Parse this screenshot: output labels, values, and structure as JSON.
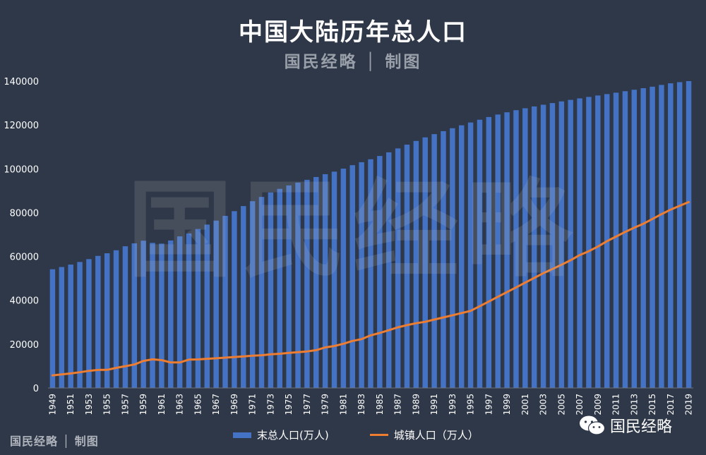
{
  "title": "中国大陆历年总人口",
  "subtitle": "国民经略 │ 制图",
  "watermark": "国民经略",
  "credit": "国民经略 │ 制图",
  "wechat_label": "国民经略",
  "colors": {
    "bar": "#4472c4",
    "line": "#ed7d31",
    "background": "#2f3848",
    "text": "#ffffff"
  },
  "chart_data": {
    "type": "bar",
    "title": "中国大陆历年总人口",
    "categories": [
      "1949",
      "1950",
      "1951",
      "1952",
      "1953",
      "1954",
      "1955",
      "1956",
      "1957",
      "1958",
      "1959",
      "1960",
      "1961",
      "1962",
      "1963",
      "1964",
      "1965",
      "1966",
      "1967",
      "1968",
      "1969",
      "1970",
      "1971",
      "1972",
      "1973",
      "1974",
      "1975",
      "1976",
      "1977",
      "1978",
      "1979",
      "1980",
      "1981",
      "1982",
      "1983",
      "1984",
      "1985",
      "1986",
      "1987",
      "1988",
      "1989",
      "1990",
      "1991",
      "1992",
      "1993",
      "1994",
      "1995",
      "1996",
      "1997",
      "1998",
      "1999",
      "2000",
      "2001",
      "2002",
      "2003",
      "2004",
      "2005",
      "2006",
      "2007",
      "2008",
      "2009",
      "2010",
      "2011",
      "2012",
      "2013",
      "2014",
      "2015",
      "2016",
      "2017",
      "2018",
      "2019"
    ],
    "tick_labels": [
      "1949",
      "1951",
      "1953",
      "1955",
      "1957",
      "1959",
      "1961",
      "1963",
      "1965",
      "1967",
      "1969",
      "1971",
      "1973",
      "1975",
      "1977",
      "1979",
      "1981",
      "1983",
      "1985",
      "1987",
      "1989",
      "1991",
      "1993",
      "1995",
      "1997",
      "1999",
      "2001",
      "2003",
      "2005",
      "2007",
      "2009",
      "2011",
      "2013",
      "2015",
      "2017",
      "2019"
    ],
    "series": [
      {
        "name": "末总人口(万人)",
        "type": "bar",
        "values": [
          54167,
          55196,
          56300,
          57482,
          58796,
          60266,
          61465,
          62828,
          64653,
          65994,
          67207,
          66207,
          65859,
          67295,
          69172,
          70499,
          72538,
          74542,
          76368,
          78534,
          80671,
          82992,
          85229,
          87177,
          89211,
          90859,
          92420,
          93717,
          94974,
          96259,
          97542,
          98705,
          100072,
          101654,
          103008,
          104357,
          105851,
          107507,
          109300,
          111026,
          112704,
          114333,
          115823,
          117171,
          118517,
          119850,
          121121,
          122389,
          123626,
          124761,
          125786,
          126743,
          127627,
          128453,
          129227,
          129988,
          130756,
          131448,
          132129,
          132802,
          133450,
          134091,
          134735,
          135404,
          136072,
          136782,
          137462,
          138271,
          139008,
          139538,
          140005
        ]
      },
      {
        "name": "城镇人口（万人）",
        "type": "line",
        "values": [
          5765,
          6169,
          6632,
          7163,
          7826,
          8249,
          8285,
          9185,
          9949,
          10721,
          12371,
          13073,
          12707,
          11659,
          11646,
          12950,
          13045,
          13313,
          13548,
          13838,
          14117,
          14424,
          14711,
          14935,
          15345,
          15595,
          16030,
          16341,
          16669,
          17245,
          18495,
          19140,
          20171,
          21480,
          22274,
          24017,
          25094,
          26366,
          27674,
          28661,
          29540,
          30195,
          31203,
          32175,
          33173,
          34169,
          35174,
          37304,
          39449,
          41608,
          43748,
          45906,
          48064,
          50212,
          52376,
          54283,
          56212,
          58288,
          60633,
          62403,
          64512,
          66978,
          69079,
          71182,
          73111,
          74916,
          77116,
          79298,
          81347,
          83137,
          84843
        ]
      }
    ],
    "ylim": [
      0,
      140000
    ],
    "yticks": [
      0,
      20000,
      40000,
      60000,
      80000,
      100000,
      120000,
      140000
    ],
    "grid": false,
    "legend": "bottom"
  }
}
